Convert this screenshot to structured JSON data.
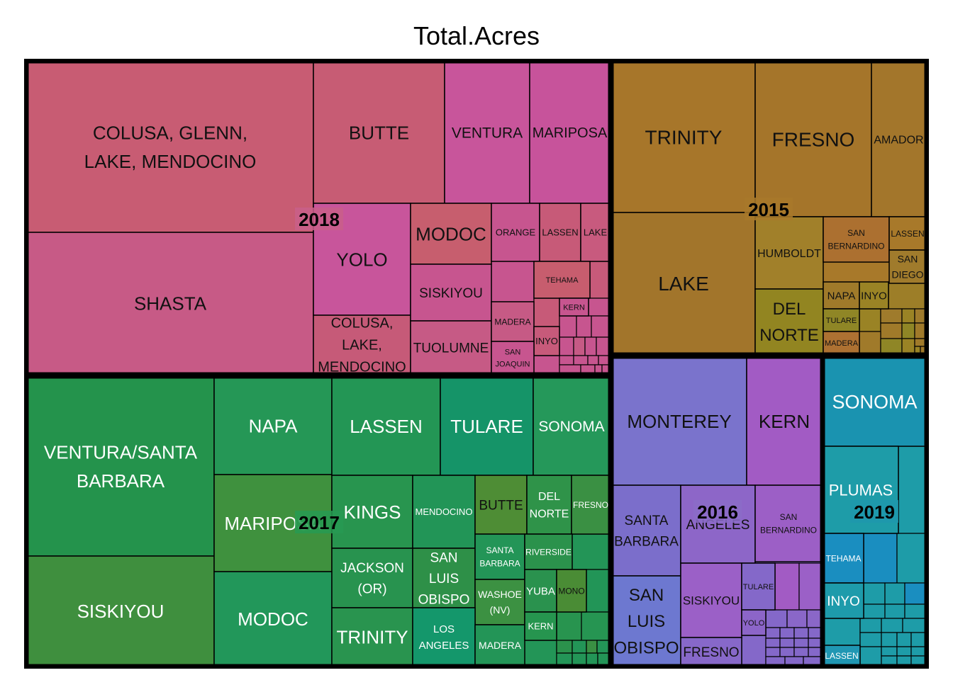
{
  "title": "Total.Acres",
  "chart_data": {
    "type": "treemap",
    "title": "Total.Acres",
    "groups": [
      {
        "name": "2018",
        "color": "#c95f8a",
        "items": [
          {
            "label": "COLUSA, GLENN, LAKE, MENDOCINO",
            "lines": [
              "COLUSA, GLENN,",
              "LAKE, MENDOCINO"
            ],
            "color": "#c85c73"
          },
          {
            "label": "SHASTA",
            "lines": [
              "SHASTA"
            ],
            "color": "#c75a86"
          },
          {
            "label": "BUTTE",
            "lines": [
              "BUTTE"
            ],
            "color": "#c75c74"
          },
          {
            "label": "VENTURA",
            "lines": [
              "VENTURA"
            ],
            "color": "#c8559b"
          },
          {
            "label": "MARIPOSA",
            "lines": [
              "MARIPOSA"
            ],
            "color": "#c7539b"
          },
          {
            "label": "YOLO",
            "lines": [
              "YOLO"
            ],
            "color": "#c8559b"
          },
          {
            "label": "COLUSA, LAKE, MENDOCINO",
            "lines": [
              "COLUSA,",
              "LAKE,",
              "MENDOCINO"
            ],
            "color": "#c65a78"
          },
          {
            "label": "MODOC",
            "lines": [
              "MODOC"
            ],
            "color": "#c75e6e"
          },
          {
            "label": "SISKIYOU",
            "lines": [
              "SISKIYOU"
            ],
            "color": "#c7558f"
          },
          {
            "label": "TUOLUMNE",
            "lines": [
              "TUOLUMNE"
            ],
            "color": "#c65a85"
          },
          {
            "label": "ORANGE",
            "lines": [
              "ORANGE"
            ],
            "color": "#c7558f"
          },
          {
            "label": "LASSEN",
            "lines": [
              "LASSEN"
            ],
            "color": "#c75a78"
          },
          {
            "label": "LAKE",
            "lines": [
              "LAKE"
            ],
            "color": "#c85a7e"
          },
          {
            "label": "TEHAMA",
            "lines": [
              "TEHAMA"
            ],
            "color": "#c75d6e"
          },
          {
            "label": "KERN",
            "lines": [
              "KERN"
            ],
            "color": "#c7558f"
          },
          {
            "label": "MADERA",
            "lines": [
              "MADERA"
            ],
            "color": "#c65a85"
          },
          {
            "label": "INYO",
            "lines": [
              "INYO"
            ],
            "color": "#c75a7a"
          },
          {
            "label": "SAN JOAQUIN",
            "lines": [
              "SAN",
              "JOAQUIN"
            ],
            "color": "#c7558f"
          }
        ]
      },
      {
        "name": "2015",
        "color": "#a8792a",
        "items": [
          {
            "label": "TRINITY",
            "lines": [
              "TRINITY"
            ],
            "color": "#a7762a"
          },
          {
            "label": "FRESNO",
            "lines": [
              "FRESNO"
            ],
            "color": "#a5752a"
          },
          {
            "label": "AMADOR",
            "lines": [
              "AMADOR"
            ],
            "color": "#a3762b"
          },
          {
            "label": "LAKE",
            "lines": [
              "LAKE"
            ],
            "color": "#a2752b"
          },
          {
            "label": "HUMBOLDT",
            "lines": [
              "HUMBOLDT"
            ],
            "color": "#a1802a"
          },
          {
            "label": "SAN BERNARDINO",
            "lines": [
              "SAN",
              "BERNARDINO"
            ],
            "color": "#ac7030"
          },
          {
            "label": "LASSEN",
            "lines": [
              "LASSEN"
            ],
            "color": "#a8792a"
          },
          {
            "label": "SAN DIEGO",
            "lines": [
              "SAN",
              "DIEGO"
            ],
            "color": "#a07b2c"
          },
          {
            "label": "DEL NORTE",
            "lines": [
              "DEL",
              "NORTE"
            ],
            "color": "#928521"
          },
          {
            "label": "NAPA",
            "lines": [
              "NAPA"
            ],
            "color": "#a07a2a"
          },
          {
            "label": "INYO",
            "lines": [
              "INYO"
            ],
            "color": "#9a8325"
          },
          {
            "label": "TULARE",
            "lines": [
              "TULARE"
            ],
            "color": "#8f8626"
          },
          {
            "label": "MADERA",
            "lines": [
              "MADERA"
            ],
            "color": "#ad7132"
          }
        ]
      },
      {
        "name": "2017",
        "color": "#279a52",
        "items": [
          {
            "label": "VENTURA/SANTA BARBARA",
            "lines": [
              "VENTURA/SANTA",
              "BARBARA"
            ],
            "color": "#24934c"
          },
          {
            "label": "SISKIYOU",
            "lines": [
              "SISKIYOU"
            ],
            "color": "#3f8f3e"
          },
          {
            "label": "NAPA",
            "lines": [
              "NAPA"
            ],
            "color": "#259756"
          },
          {
            "label": "MARIPOSA",
            "lines": [
              "MARIPOSA"
            ],
            "color": "#3f913e"
          },
          {
            "label": "MODOC",
            "lines": [
              "MODOC"
            ],
            "color": "#22975a"
          },
          {
            "label": "LASSEN",
            "lines": [
              "LASSEN"
            ],
            "color": "#239655"
          },
          {
            "label": "TULARE",
            "lines": [
              "TULARE"
            ],
            "color": "#159468"
          },
          {
            "label": "SONOMA",
            "lines": [
              "SONOMA"
            ],
            "color": "#25985a"
          },
          {
            "label": "KINGS",
            "lines": [
              "KINGS"
            ],
            "color": "#28954f"
          },
          {
            "label": "MENDOCINO",
            "lines": [
              "MENDOCINO"
            ],
            "color": "#229557"
          },
          {
            "label": "BUTTE",
            "lines": [
              "BUTTE"
            ],
            "color": "#4e8d35"
          },
          {
            "label": "DEL NORTE",
            "lines": [
              "DEL",
              "NORTE"
            ],
            "color": "#2f9349"
          },
          {
            "label": "FRESNO",
            "lines": [
              "FRESNO"
            ],
            "color": "#3a9043"
          },
          {
            "label": "JACKSON (OR)",
            "lines": [
              "JACKSON",
              "(OR)"
            ],
            "color": "#28934f"
          },
          {
            "label": "SAN LUIS OBISPO",
            "lines": [
              "SAN",
              "LUIS",
              "OBISPO"
            ],
            "color": "#2e9048"
          },
          {
            "label": "SANTA BARBARA",
            "lines": [
              "SANTA",
              "BARBARA"
            ],
            "color": "#239557"
          },
          {
            "label": "RIVERSIDE",
            "lines": [
              "RIVERSIDE"
            ],
            "color": "#2b924c"
          },
          {
            "label": "WASHOE (NV)",
            "lines": [
              "WASHOE",
              "(NV)"
            ],
            "color": "#3c9142"
          },
          {
            "label": "YUBA",
            "lines": [
              "YUBA"
            ],
            "color": "#2a924e"
          },
          {
            "label": "MONO",
            "lines": [
              "MONO"
            ],
            "color": "#4a8c35"
          },
          {
            "label": "TRINITY",
            "lines": [
              "TRINITY"
            ],
            "color": "#29944f"
          },
          {
            "label": "LOS ANGELES",
            "lines": [
              "LOS",
              "ANGELES"
            ],
            "color": "#14976b"
          },
          {
            "label": "MADERA",
            "lines": [
              "MADERA"
            ],
            "color": "#239557"
          },
          {
            "label": "KERN",
            "lines": [
              "KERN"
            ],
            "color": "#26954f"
          }
        ]
      },
      {
        "name": "2016",
        "color": "#8b6cc8",
        "items": [
          {
            "label": "MONTEREY",
            "lines": [
              "MONTEREY"
            ],
            "color": "#7a73cc"
          },
          {
            "label": "KERN",
            "lines": [
              "KERN"
            ],
            "color": "#a25bc4"
          },
          {
            "label": "SANTA BARBARA",
            "lines": [
              "SANTA",
              "BARBARA"
            ],
            "color": "#7b6ecb"
          },
          {
            "label": "LOS ANGELES",
            "lines": [
              "ANGELES"
            ],
            "color": "#8d66c8"
          },
          {
            "label": "SAN BERNARDINO",
            "lines": [
              "SAN",
              "BERNARDINO"
            ],
            "color": "#9c5fc6"
          },
          {
            "label": "SAN LUIS OBISPO",
            "lines": [
              "SAN",
              "LUIS",
              "OBISPO"
            ],
            "color": "#6d78d0"
          },
          {
            "label": "SISKIYOU",
            "lines": [
              "SISKIYOU"
            ],
            "color": "#9b60c7"
          },
          {
            "label": "FRESNO",
            "lines": [
              "FRESNO"
            ],
            "color": "#8768c9"
          },
          {
            "label": "TULARE",
            "lines": [
              "TULARE"
            ],
            "color": "#8468c9"
          },
          {
            "label": "YOLO",
            "lines": [
              "YOLO"
            ],
            "color": "#8c65c8"
          }
        ]
      },
      {
        "name": "2019",
        "color": "#1e98ad",
        "items": [
          {
            "label": "SONOMA",
            "lines": [
              "SONOMA"
            ],
            "color": "#1a93b0"
          },
          {
            "label": "PLUMAS",
            "lines": [
              "PLUMAS"
            ],
            "color": "#1e9ca8"
          },
          {
            "label": "TEHAMA",
            "lines": [
              "TEHAMA"
            ],
            "color": "#1a8ec0"
          },
          {
            "label": "INYO",
            "lines": [
              "INYO"
            ],
            "color": "#1e9bab"
          },
          {
            "label": "LASSEN",
            "lines": [
              "LASSEN"
            ],
            "color": "#2097b3"
          }
        ]
      }
    ]
  }
}
